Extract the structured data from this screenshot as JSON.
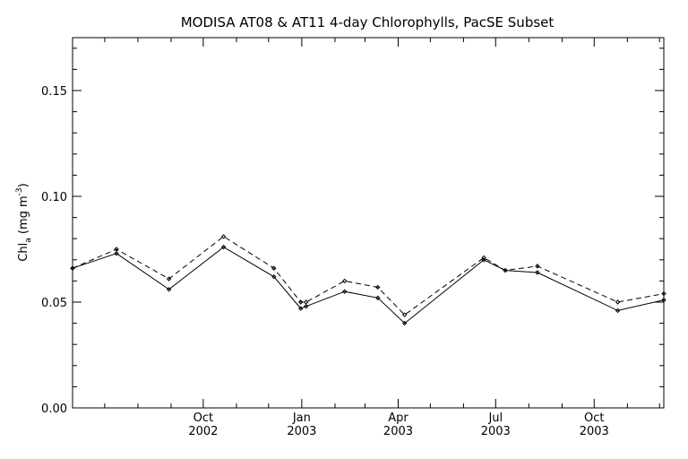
{
  "chart_data": {
    "type": "line",
    "title": "MODISA AT08 & AT11 4-day Chlorophylls, PacSE Subset",
    "ylabel": {
      "main": "Chl",
      "sub": "a",
      "units_open": " (mg m",
      "units_sup": "-3",
      "units_close": ")"
    },
    "xlabel": "",
    "ylim": [
      0.0,
      0.175
    ],
    "xlim": [
      "2002-06-01",
      "2003-12-05"
    ],
    "y_ticks": [
      {
        "value": 0.0,
        "label": "0.00"
      },
      {
        "value": 0.05,
        "label": "0.05"
      },
      {
        "value": 0.1,
        "label": "0.10"
      },
      {
        "value": 0.15,
        "label": "0.15"
      }
    ],
    "x_ticks": [
      {
        "date": "2002-10-01",
        "month": "Oct",
        "year": "2002"
      },
      {
        "date": "2003-01-01",
        "month": "Jan",
        "year": "2003"
      },
      {
        "date": "2003-04-01",
        "month": "Apr",
        "year": "2003"
      },
      {
        "date": "2003-07-01",
        "month": "Jul",
        "year": "2003"
      },
      {
        "date": "2003-10-01",
        "month": "Oct",
        "year": "2003"
      }
    ],
    "grid": false,
    "legend": "none",
    "series": [
      {
        "style": "solid",
        "points": [
          {
            "x": "2002-06-01",
            "y": 0.066
          },
          {
            "x": "2002-07-12",
            "y": 0.073
          },
          {
            "x": "2002-08-30",
            "y": 0.056
          },
          {
            "x": "2002-10-20",
            "y": 0.076
          },
          {
            "x": "2002-12-06",
            "y": 0.062
          },
          {
            "x": "2002-12-31",
            "y": 0.047
          },
          {
            "x": "2003-01-05",
            "y": 0.048
          },
          {
            "x": "2003-02-10",
            "y": 0.055
          },
          {
            "x": "2003-03-13",
            "y": 0.052
          },
          {
            "x": "2003-04-07",
            "y": 0.04
          },
          {
            "x": "2003-06-20",
            "y": 0.07
          },
          {
            "x": "2003-07-10",
            "y": 0.065
          },
          {
            "x": "2003-08-09",
            "y": 0.064
          },
          {
            "x": "2003-10-23",
            "y": 0.046
          },
          {
            "x": "2003-12-05",
            "y": 0.051
          }
        ]
      },
      {
        "style": "dashed",
        "points": [
          {
            "x": "2002-06-01",
            "y": 0.066
          },
          {
            "x": "2002-07-12",
            "y": 0.075
          },
          {
            "x": "2002-08-30",
            "y": 0.061
          },
          {
            "x": "2002-10-20",
            "y": 0.081
          },
          {
            "x": "2002-12-06",
            "y": 0.066
          },
          {
            "x": "2002-12-31",
            "y": 0.05
          },
          {
            "x": "2003-01-05",
            "y": 0.05
          },
          {
            "x": "2003-02-10",
            "y": 0.06
          },
          {
            "x": "2003-03-13",
            "y": 0.057
          },
          {
            "x": "2003-04-07",
            "y": 0.044
          },
          {
            "x": "2003-06-20",
            "y": 0.071
          },
          {
            "x": "2003-07-10",
            "y": 0.065
          },
          {
            "x": "2003-08-09",
            "y": 0.067
          },
          {
            "x": "2003-10-23",
            "y": 0.05
          },
          {
            "x": "2003-12-05",
            "y": 0.054
          }
        ]
      }
    ]
  }
}
